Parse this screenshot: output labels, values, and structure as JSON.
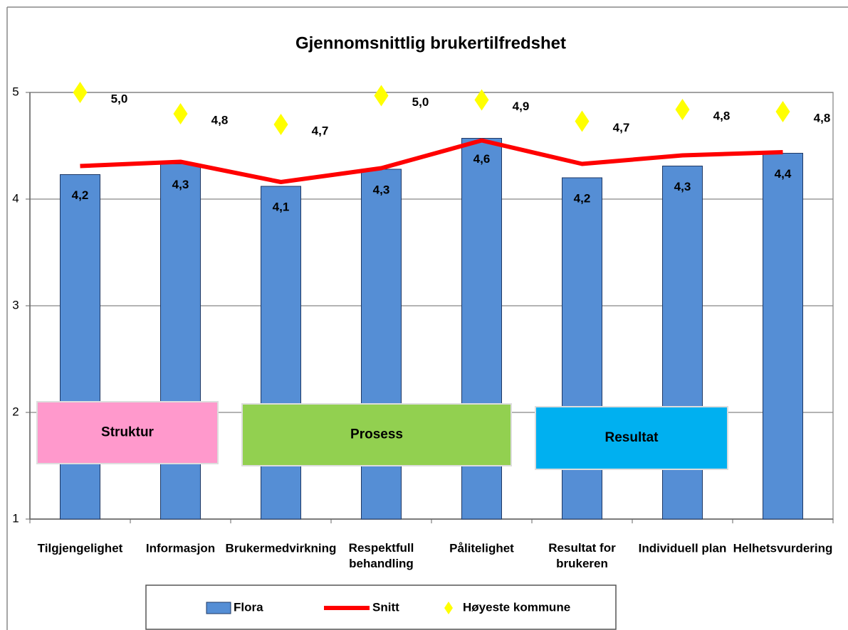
{
  "chart_data": {
    "type": "bar",
    "title": "Gjennomsnittlig brukertilfredshet",
    "categories": [
      "Tilgjengelighet",
      "Informasjon",
      "Brukermedvirkning",
      "Respektfull\nbehandling",
      "Pålitelighet",
      "Resultat for\nbrukeren",
      "Individuell plan",
      "Helhetsvurdering"
    ],
    "series": [
      {
        "name": "Flora",
        "type": "bar",
        "color": "#558ed5",
        "values": [
          4.23,
          4.33,
          4.12,
          4.28,
          4.57,
          4.2,
          4.31,
          4.43
        ],
        "value_labels": [
          "4,2",
          "4,3",
          "4,1",
          "4,3",
          "4,6",
          "4,2",
          "4,3",
          "4,4"
        ]
      },
      {
        "name": "Snitt",
        "type": "line",
        "color": "#ff0000",
        "values": [
          4.31,
          4.35,
          4.16,
          4.29,
          4.55,
          4.33,
          4.41,
          4.44
        ]
      },
      {
        "name": "Høyeste kommune",
        "type": "scatter",
        "color": "#ffff00",
        "values": [
          5.0,
          4.8,
          4.7,
          4.97,
          4.93,
          4.73,
          4.84,
          4.82
        ],
        "value_labels": [
          "5,0",
          "4,8",
          "4,7",
          "5,0",
          "4,9",
          "4,7",
          "4,8",
          "4,8"
        ]
      }
    ],
    "ylim": [
      1,
      5
    ],
    "yticks": [
      1,
      2,
      3,
      4,
      5
    ],
    "grid": true,
    "legend": "bottom",
    "annotations": [
      {
        "text": "Struktur",
        "color": "#ff99cc"
      },
      {
        "text": "Prosess",
        "color": "#92d050"
      },
      {
        "text": "Resultat",
        "color": "#00b0f0"
      }
    ]
  }
}
